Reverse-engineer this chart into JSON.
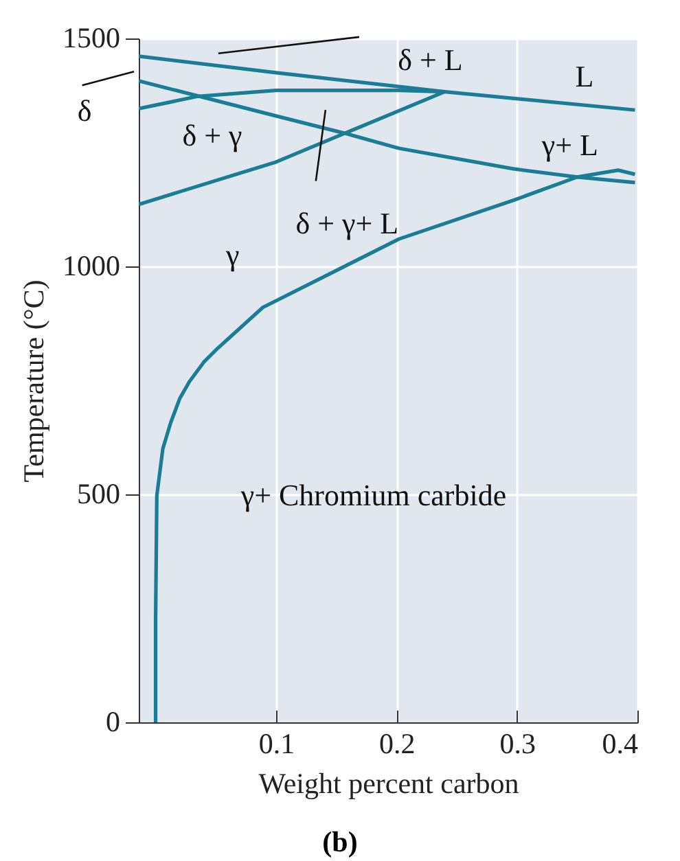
{
  "chart_data": {
    "type": "line",
    "xlabel": "Weight percent carbon",
    "ylabel": "Temperature (°C)",
    "xlim": [
      -0.014,
      0.4
    ],
    "xticks": [
      0.1,
      0.2,
      0.3,
      0.4
    ],
    "ylim": [
      0,
      1500
    ],
    "yticks": [
      0,
      500,
      1000,
      1500
    ],
    "grid": true,
    "marker": "none",
    "line_style": "solid",
    "series": [
      {
        "color": "#1a7d95",
        "x": [
          -0.014,
          0.1,
          0.24,
          0.398
        ],
        "values": [
          1461,
          1425,
          1383,
          1343
        ]
      },
      {
        "color": "#1a7d95",
        "x": [
          -0.014,
          0.035,
          0.1,
          0.202,
          0.24
        ],
        "values": [
          1346,
          1373,
          1386,
          1386,
          1383
        ]
      },
      {
        "color": "#1a7d95",
        "x": [
          -0.014,
          0.1,
          0.157,
          0.202,
          0.297,
          0.35,
          0.398
        ],
        "values": [
          1407,
          1330,
          1292,
          1259,
          1214,
          1196,
          1184
        ]
      },
      {
        "color": "#1a7d95",
        "x": [
          -0.014,
          0.1,
          0.157,
          0.24
        ],
        "values": [
          1136,
          1229,
          1292,
          1383
        ]
      },
      {
        "color": "#1a7d95",
        "x": [
          0,
          0,
          0.001,
          0.006,
          0.0125,
          0.02,
          0.028,
          0.04,
          0.051,
          0.089,
          0.202,
          0.297,
          0.35,
          0.384,
          0.398
        ],
        "values": [
          0,
          226,
          497,
          600,
          657,
          710,
          747,
          790,
          819,
          910,
          1060,
          1145,
          1196,
          1211,
          1202
        ]
      }
    ],
    "annotations": [
      "δ + L",
      "L",
      "δ",
      "δ + γ",
      "γ+ L",
      {
        "text": "δ + γ+ L",
        "x": 0.157,
        "y": 1292
      },
      "γ",
      "γ+ Chromium carbide",
      "(b)"
    ]
  }
}
